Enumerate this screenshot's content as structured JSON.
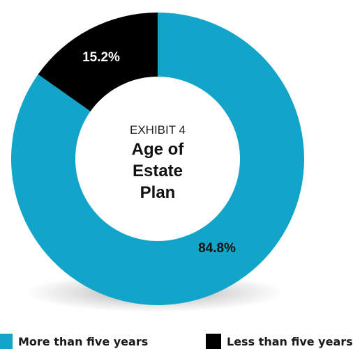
{
  "chart_data": {
    "type": "pie",
    "style": "donut",
    "exhibit_label": "EXHIBIT 4",
    "title_lines": [
      "Age of",
      "Estate",
      "Plan"
    ],
    "slices": [
      {
        "name": "More than five years",
        "value": 84.8,
        "label": "84.8%",
        "color": "#12a5c9",
        "label_color": "#111111"
      },
      {
        "name": "Less than five years",
        "value": 15.2,
        "label": "15.2%",
        "color": "#000000",
        "label_color": "#ffffff"
      }
    ],
    "legend_placement": "bottom"
  }
}
